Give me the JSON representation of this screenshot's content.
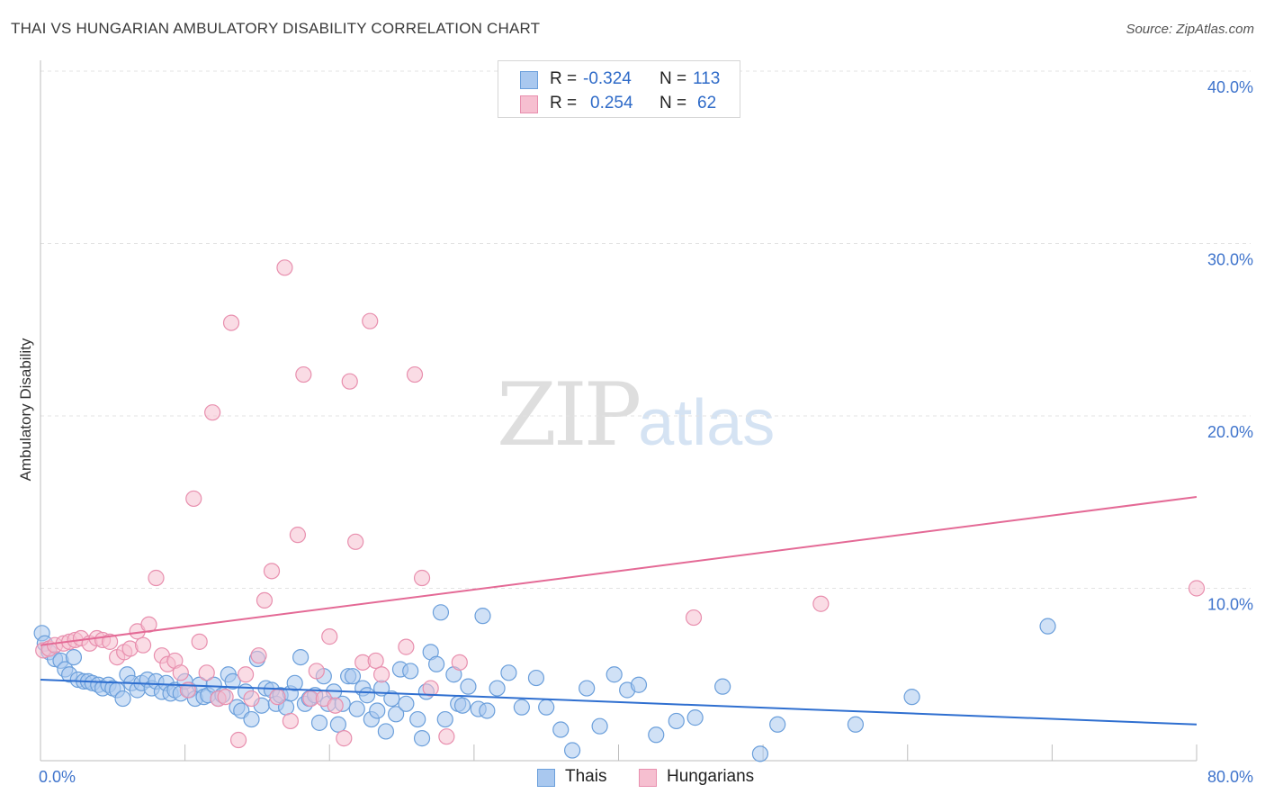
{
  "title": "THAI VS HUNGARIAN AMBULATORY DISABILITY CORRELATION CHART",
  "source": "Source: ZipAtlas.com",
  "watermark": {
    "part1": "ZIP",
    "part2": "atlas"
  },
  "legend": {
    "rows": [
      {
        "r_label": "R =",
        "r_value": "-0.324",
        "n_label": "N =",
        "n_value": "113"
      },
      {
        "r_label": "R =",
        "r_value": "0.254",
        "n_label": "N =",
        "n_value": "62"
      }
    ]
  },
  "bottom_legend": {
    "thais": "Thais",
    "hungarians": "Hungarians"
  },
  "colors": {
    "thai_fill": "#a9c8ef",
    "thai_stroke": "#6b9fdb",
    "thai_line": "#2f6fd0",
    "hun_fill": "#f6bfd0",
    "hun_stroke": "#e88fae",
    "hun_line": "#e46a96",
    "axis_text": "#3f74cc",
    "grid": "#e3e3e3"
  },
  "chart_data": {
    "type": "scatter",
    "title": "THAI VS HUNGARIAN AMBULATORY DISABILITY CORRELATION CHART",
    "xlabel": "",
    "ylabel": "Ambulatory Disability",
    "xlim": [
      0,
      80
    ],
    "ylim": [
      0,
      40
    ],
    "x_tick_labels": [
      "0.0%",
      "80.0%"
    ],
    "y_ticks": [
      10,
      20,
      30,
      40
    ],
    "y_tick_labels": [
      "10.0%",
      "20.0%",
      "30.0%",
      "40.0%"
    ],
    "grid": true,
    "series": [
      {
        "name": "Thais",
        "r": -0.324,
        "n": 113,
        "trend": {
          "x": [
            0,
            80
          ],
          "y": [
            4.7,
            2.1
          ]
        },
        "points": [
          [
            0.1,
            7.4
          ],
          [
            0.3,
            6.8
          ],
          [
            0.6,
            6.3
          ],
          [
            1.0,
            5.9
          ],
          [
            1.4,
            5.8
          ],
          [
            1.7,
            5.3
          ],
          [
            2.0,
            5.0
          ],
          [
            2.3,
            6.0
          ],
          [
            2.6,
            4.7
          ],
          [
            3.0,
            4.6
          ],
          [
            3.3,
            4.6
          ],
          [
            3.6,
            4.5
          ],
          [
            4.0,
            4.4
          ],
          [
            4.3,
            4.2
          ],
          [
            4.7,
            4.4
          ],
          [
            5.0,
            4.2
          ],
          [
            5.3,
            4.1
          ],
          [
            5.7,
            3.6
          ],
          [
            6.0,
            5.0
          ],
          [
            6.3,
            4.5
          ],
          [
            6.7,
            4.1
          ],
          [
            7.0,
            4.5
          ],
          [
            7.4,
            4.7
          ],
          [
            7.7,
            4.2
          ],
          [
            8.0,
            4.6
          ],
          [
            8.4,
            4.0
          ],
          [
            8.7,
            4.5
          ],
          [
            9.0,
            3.9
          ],
          [
            9.3,
            4.1
          ],
          [
            9.7,
            3.9
          ],
          [
            10.0,
            4.6
          ],
          [
            10.3,
            4.1
          ],
          [
            10.7,
            3.6
          ],
          [
            11.0,
            4.4
          ],
          [
            11.3,
            3.7
          ],
          [
            11.6,
            3.8
          ],
          [
            12.0,
            4.4
          ],
          [
            12.3,
            3.6
          ],
          [
            12.6,
            3.8
          ],
          [
            13.0,
            5.0
          ],
          [
            13.3,
            4.6
          ],
          [
            13.6,
            3.1
          ],
          [
            13.9,
            2.9
          ],
          [
            14.2,
            4.0
          ],
          [
            14.6,
            2.4
          ],
          [
            15.0,
            5.9
          ],
          [
            15.3,
            3.2
          ],
          [
            15.6,
            4.2
          ],
          [
            16.0,
            4.1
          ],
          [
            16.3,
            3.3
          ],
          [
            16.6,
            3.8
          ],
          [
            17.0,
            3.1
          ],
          [
            17.3,
            3.9
          ],
          [
            17.6,
            4.5
          ],
          [
            18.0,
            6.0
          ],
          [
            18.3,
            3.3
          ],
          [
            18.6,
            3.6
          ],
          [
            19.0,
            3.8
          ],
          [
            19.3,
            2.2
          ],
          [
            19.6,
            4.9
          ],
          [
            19.9,
            3.3
          ],
          [
            20.3,
            4.0
          ],
          [
            20.6,
            2.1
          ],
          [
            20.9,
            3.3
          ],
          [
            21.3,
            4.9
          ],
          [
            21.6,
            4.9
          ],
          [
            21.9,
            3.0
          ],
          [
            22.3,
            4.2
          ],
          [
            22.6,
            3.8
          ],
          [
            22.9,
            2.4
          ],
          [
            23.3,
            2.9
          ],
          [
            23.6,
            4.2
          ],
          [
            23.9,
            1.7
          ],
          [
            24.3,
            3.6
          ],
          [
            24.6,
            2.7
          ],
          [
            24.9,
            5.3
          ],
          [
            25.3,
            3.3
          ],
          [
            25.6,
            5.2
          ],
          [
            26.1,
            2.4
          ],
          [
            26.4,
            1.3
          ],
          [
            26.7,
            4.0
          ],
          [
            27.0,
            6.3
          ],
          [
            27.4,
            5.6
          ],
          [
            27.7,
            8.6
          ],
          [
            28.0,
            2.4
          ],
          [
            28.6,
            5.0
          ],
          [
            28.9,
            3.3
          ],
          [
            29.2,
            3.2
          ],
          [
            29.6,
            4.3
          ],
          [
            30.3,
            3.0
          ],
          [
            30.6,
            8.4
          ],
          [
            30.9,
            2.9
          ],
          [
            31.6,
            4.2
          ],
          [
            32.4,
            5.1
          ],
          [
            33.3,
            3.1
          ],
          [
            34.3,
            4.8
          ],
          [
            35.0,
            3.1
          ],
          [
            36.0,
            1.8
          ],
          [
            36.8,
            0.6
          ],
          [
            37.8,
            4.2
          ],
          [
            38.7,
            2.0
          ],
          [
            39.7,
            5.0
          ],
          [
            40.6,
            4.1
          ],
          [
            41.4,
            4.4
          ],
          [
            42.6,
            1.5
          ],
          [
            44.0,
            2.3
          ],
          [
            45.3,
            2.5
          ],
          [
            47.2,
            4.3
          ],
          [
            49.8,
            0.4
          ],
          [
            51.0,
            2.1
          ],
          [
            56.4,
            2.1
          ],
          [
            60.3,
            3.7
          ],
          [
            69.7,
            7.8
          ]
        ]
      },
      {
        "name": "Hungarians",
        "r": 0.254,
        "n": 62,
        "trend": {
          "x": [
            0,
            80
          ],
          "y": [
            6.7,
            15.3
          ]
        },
        "points": [
          [
            0.2,
            6.4
          ],
          [
            0.6,
            6.5
          ],
          [
            1.0,
            6.7
          ],
          [
            1.6,
            6.8
          ],
          [
            2.0,
            6.9
          ],
          [
            2.4,
            7.0
          ],
          [
            2.8,
            7.1
          ],
          [
            3.4,
            6.8
          ],
          [
            3.9,
            7.1
          ],
          [
            4.3,
            7.0
          ],
          [
            4.8,
            6.9
          ],
          [
            5.3,
            6.0
          ],
          [
            5.8,
            6.3
          ],
          [
            6.2,
            6.5
          ],
          [
            6.7,
            7.5
          ],
          [
            7.1,
            6.7
          ],
          [
            7.5,
            7.9
          ],
          [
            8.0,
            10.6
          ],
          [
            8.4,
            6.1
          ],
          [
            8.8,
            5.6
          ],
          [
            9.3,
            5.8
          ],
          [
            9.7,
            5.1
          ],
          [
            10.2,
            4.1
          ],
          [
            10.6,
            15.2
          ],
          [
            11.0,
            6.9
          ],
          [
            11.5,
            5.1
          ],
          [
            11.9,
            20.2
          ],
          [
            12.3,
            3.6
          ],
          [
            12.8,
            3.7
          ],
          [
            13.2,
            25.4
          ],
          [
            13.7,
            1.2
          ],
          [
            14.2,
            5.0
          ],
          [
            14.6,
            3.6
          ],
          [
            15.1,
            6.1
          ],
          [
            15.5,
            9.3
          ],
          [
            16.0,
            11.0
          ],
          [
            16.4,
            3.7
          ],
          [
            16.9,
            28.6
          ],
          [
            17.3,
            2.3
          ],
          [
            17.8,
            13.1
          ],
          [
            18.2,
            22.4
          ],
          [
            18.7,
            3.6
          ],
          [
            19.1,
            5.2
          ],
          [
            19.6,
            3.6
          ],
          [
            20.0,
            7.2
          ],
          [
            20.4,
            3.2
          ],
          [
            21.0,
            1.3
          ],
          [
            21.4,
            22.0
          ],
          [
            21.8,
            12.7
          ],
          [
            22.3,
            5.7
          ],
          [
            22.8,
            25.5
          ],
          [
            23.2,
            5.8
          ],
          [
            23.6,
            5.0
          ],
          [
            25.3,
            6.6
          ],
          [
            25.9,
            22.4
          ],
          [
            26.4,
            10.6
          ],
          [
            27.0,
            4.2
          ],
          [
            28.1,
            1.4
          ],
          [
            29.0,
            5.7
          ],
          [
            45.2,
            8.3
          ],
          [
            54.0,
            9.1
          ],
          [
            80.0,
            10.0
          ]
        ]
      }
    ]
  }
}
